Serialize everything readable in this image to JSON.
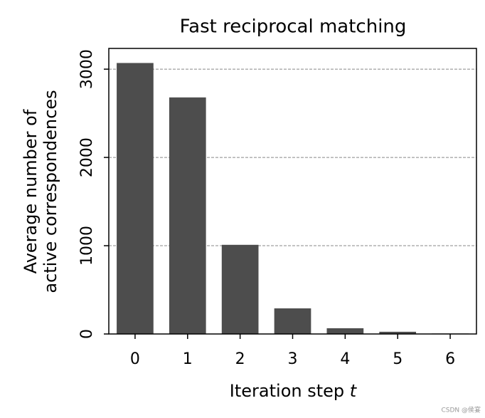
{
  "chart_data": {
    "type": "bar",
    "title": "Fast reciprocal matching",
    "ylabel": [
      "Average number of",
      "active correspondences"
    ],
    "xlabel": {
      "text": "Iteration step",
      "variable": "t"
    },
    "categories": [
      "0",
      "1",
      "2",
      "3",
      "4",
      "5",
      "6"
    ],
    "values": [
      3070,
      2680,
      1010,
      290,
      65,
      25,
      5
    ],
    "color": "#4d4d4d",
    "ylim": [
      0,
      3235
    ],
    "yticks": [
      0,
      1000,
      2000,
      3000
    ],
    "grid": true,
    "watermark": "CSDN @侯宴"
  }
}
